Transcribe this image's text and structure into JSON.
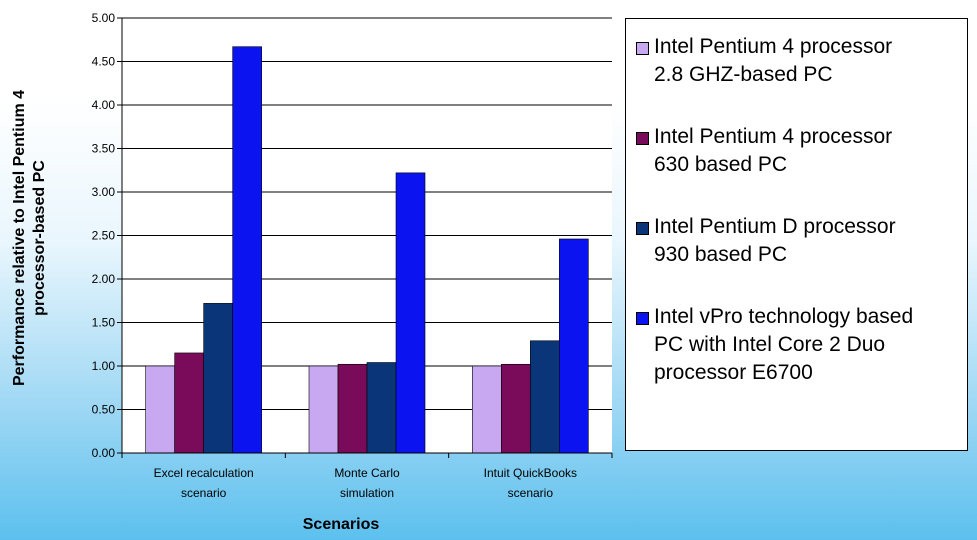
{
  "chart_data": {
    "type": "bar",
    "title": "",
    "xlabel": "Scenarios",
    "ylabel": "Performance relative to Intel Pentium 4\nprocessor-based PC",
    "categories": [
      "Excel recalculation\nscenario",
      "Monte Carlo\nsimulation",
      "Intuit QuickBooks\nscenario"
    ],
    "series": [
      {
        "name": "Intel Pentium 4 processor\n2.8 GHZ-based PC",
        "color": "#c8a8f0",
        "values": [
          1.0,
          1.0,
          1.0
        ]
      },
      {
        "name": "Intel Pentium 4 processor\n630 based PC",
        "color": "#7a0a5a",
        "values": [
          1.15,
          1.02,
          1.02
        ]
      },
      {
        "name": "Intel Pentium D processor\n930 based PC",
        "color": "#0a3578",
        "values": [
          1.72,
          1.04,
          1.29
        ]
      },
      {
        "name": "Intel vPro technology based\nPC with Intel Core 2 Duo\nprocessor E6700",
        "color": "#0b14f0",
        "values": [
          4.67,
          3.22,
          2.46
        ]
      }
    ],
    "ylim": [
      0,
      5
    ],
    "yticks": [
      "0.00",
      "0.50",
      "1.00",
      "1.50",
      "2.00",
      "2.50",
      "3.00",
      "3.50",
      "4.00",
      "4.50",
      "5.00"
    ],
    "grid": true,
    "legend_position": "right"
  }
}
